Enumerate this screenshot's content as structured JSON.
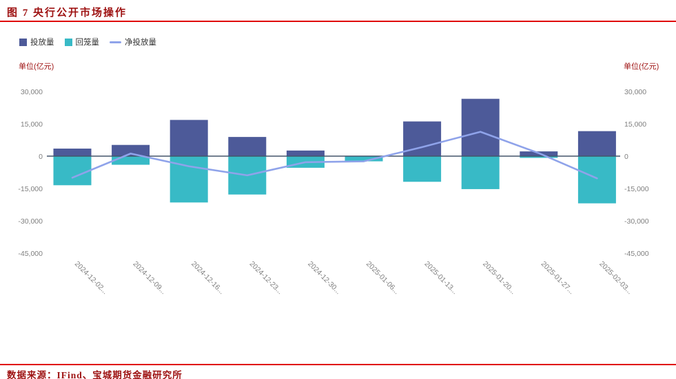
{
  "accent": {
    "red_text": "#9e1212",
    "rule_red": "#e00000",
    "tick_text": "#7f7f7f",
    "legend_text": "#333333",
    "axis_line": "#44546a"
  },
  "header": {
    "title": "图 7  央行公开市场操作"
  },
  "footer": {
    "source": "数据来源：IFind、宝城期货金融研究所"
  },
  "chart_data": {
    "type": "bar",
    "subtype": "bar-line-combo",
    "title": "央行公开市场操作",
    "unit_label_left": "单位(亿元)",
    "unit_label_right": "单位(亿元)",
    "categories": [
      "2024-12-02...",
      "2024-12-09...",
      "2024-12-16...",
      "2024-12-23...",
      "2024-12-30...",
      "2025-01-06...",
      "2025-01-13...",
      "2025-01-20...",
      "2025-01-27...",
      "2025-02-03..."
    ],
    "series": [
      {
        "name": "投放量",
        "type": "bar",
        "color": "#4d5a99",
        "values": [
          3500,
          5200,
          16800,
          8900,
          2600,
          0,
          16100,
          26600,
          2200,
          11600
        ]
      },
      {
        "name": "回笼量",
        "type": "bar",
        "color": "#38bac6",
        "values": [
          -13500,
          -4000,
          -21500,
          -17800,
          -5400,
          -2400,
          -11900,
          -15300,
          -800,
          -21900
        ]
      },
      {
        "name": "净投放量",
        "type": "line",
        "color": "#8fa3ea",
        "values": [
          -10000,
          1200,
          -4700,
          -8900,
          -2800,
          -2400,
          4200,
          11300,
          1400,
          -10300
        ]
      }
    ],
    "ylim": [
      -45000,
      30000
    ],
    "ytick_step": 15000,
    "yticks": [
      "30,000",
      "15,000",
      "0",
      "-15,000",
      "-30,000",
      "-45,000"
    ],
    "legend_position": "top-left",
    "grid": false
  }
}
